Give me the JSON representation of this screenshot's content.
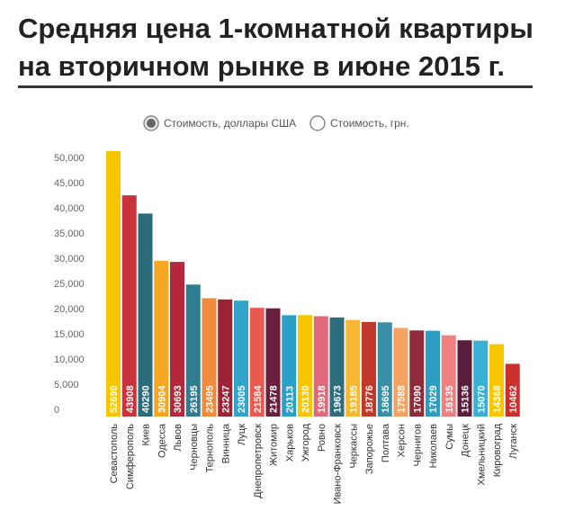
{
  "chart_data": {
    "type": "bar",
    "title_lines": [
      "Средняя цена 1-комнатной квартиры",
      "на вторичном рынке в июне 2015 г."
    ],
    "legend_options": [
      "Стоимость, доллары США",
      "Стоимость, грн."
    ],
    "selected_option": 0,
    "categories": [
      "Севастополь",
      "Симферополь",
      "Киев",
      "Одесса",
      "Львов",
      "Черновцы",
      "Тернополь",
      "Винница",
      "Луцк",
      "Днепропетровск",
      "Житомир",
      "Харьков",
      "Ужгород",
      "Ровно",
      "Ивано-Франковск",
      "Черкассы",
      "Запорожье",
      "Полтава",
      "Херсон",
      "Чернигов",
      "Николаев",
      "Сумы",
      "Донецк",
      "Хмельницкий",
      "Кировоград",
      "Луганск"
    ],
    "values": [
      52690,
      43908,
      40290,
      30904,
      30693,
      26195,
      23495,
      23247,
      23005,
      21584,
      21478,
      20113,
      20130,
      19918,
      19673,
      19185,
      18776,
      18695,
      17588,
      17090,
      17029,
      16135,
      15136,
      15070,
      14368,
      10462
    ],
    "colors": [
      "#f7c600",
      "#c8343a",
      "#2b6b7a",
      "#f5a623",
      "#b3283a",
      "#2f7d8e",
      "#f08a3c",
      "#9b2335",
      "#31a4ca",
      "#e85a4f",
      "#6b1f3f",
      "#2aa0c8",
      "#f7c600",
      "#e0697a",
      "#2c6e7d",
      "#f7b733",
      "#c0392b",
      "#3a8ea5",
      "#f4a261",
      "#8e2a3a",
      "#2e9dc4",
      "#f08080",
      "#5a1e3c",
      "#3ab0d6",
      "#f7c600",
      "#c9302c"
    ],
    "ylim": [
      0,
      55000
    ],
    "yticks": [
      0,
      {
        "value": 5000,
        "label": "5,000"
      },
      {
        "value": 10000,
        "label": "10,000"
      },
      {
        "value": 15000,
        "label": "15,000"
      },
      {
        "value": 20000,
        "label": "20,000"
      },
      {
        "value": 25000,
        "label": "25,000"
      },
      {
        "value": 30000,
        "label": "30,000"
      },
      {
        "value": 35000,
        "label": "35,000"
      },
      {
        "value": 40000,
        "label": "40,000"
      },
      {
        "value": 45000,
        "label": "45,000"
      },
      {
        "value": 50000,
        "label": "50,000"
      }
    ],
    "grid": false
  }
}
